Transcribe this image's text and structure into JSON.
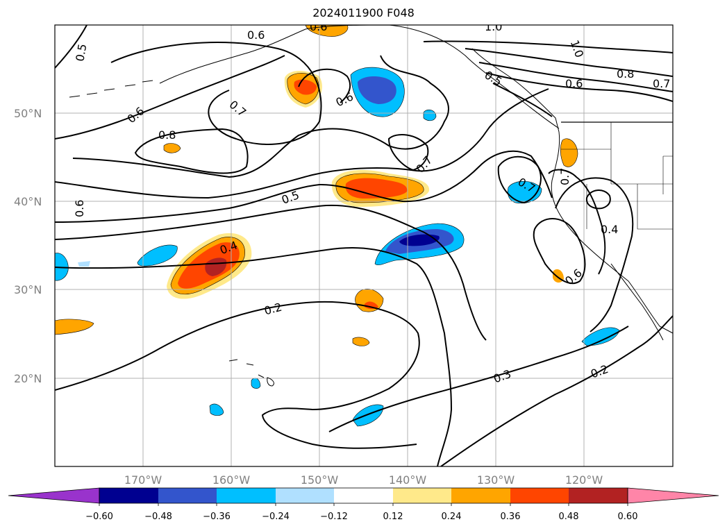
{
  "title": "2024011900 F048",
  "colors": {
    "grid": "#b0b0b0",
    "coast": "#000000",
    "contour": "#000000",
    "neg_060": "#9933cc",
    "neg_048": "#000090",
    "neg_036": "#3355cc",
    "neg_024": "#00bfff",
    "neg_012": "#b0e0ff",
    "zero": "#ffffff",
    "pos_012": "#ffe98a",
    "pos_024": "#ffa500",
    "pos_036": "#ff4500",
    "pos_048": "#b22222",
    "pos_060": "#ff85a8"
  },
  "lat_labels": [
    "50°N",
    "40°N",
    "30°N",
    "20°N"
  ],
  "lon_labels": [
    "170°W",
    "160°W",
    "150°W",
    "140°W",
    "130°W",
    "120°W"
  ],
  "contour_labels": [
    "0.5",
    "0.6",
    "0.6",
    "0.7",
    "0.8",
    "0.6",
    "0.7",
    "0.7",
    "0.5",
    "0.6",
    "0.4",
    "0.2",
    "0.3",
    "0.2",
    "0.4",
    "0.6",
    "0.7",
    "0.5",
    "1.0",
    "1.0",
    "0.8",
    "0.6",
    "0.7",
    "0.6"
  ],
  "colorbar": {
    "ticks": [
      "−0.60",
      "−0.48",
      "−0.36",
      "−0.24",
      "−0.12",
      "0.12",
      "0.24",
      "0.36",
      "0.48",
      "0.60"
    ]
  }
}
